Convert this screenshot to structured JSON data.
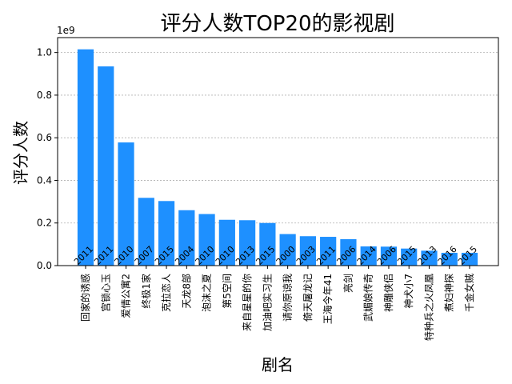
{
  "chart_data": {
    "type": "bar",
    "title": "评分人数TOP20的影视剧",
    "xlabel": "剧名",
    "ylabel": "评分人数",
    "y_offset_text": "1e9",
    "ylim": [
      0,
      1.07
    ],
    "yticks": [
      0.0,
      0.2,
      0.4,
      0.6,
      0.8,
      1.0
    ],
    "ytick_labels": [
      "0.0",
      "0.2",
      "0.4",
      "0.6",
      "0.8",
      "1.0"
    ],
    "grid": "y",
    "bar_color": "#1e90ff",
    "categories": [
      "回家的诱惑",
      "宫锁心玉",
      "爱情公寓2",
      "终极1家",
      "克拉恋人",
      "天龙8部",
      "泡沫之夏",
      "第5空间",
      "来自星星的你",
      "加油吧实习生",
      "请你原谅我",
      "倚天屠龙记",
      "王海今年41",
      "亮剑",
      "武媚娘传奇",
      "神雕侠侣",
      "神犬小7",
      "特种兵之火凤凰",
      "煮妇神探",
      "千金女贼"
    ],
    "values": [
      1.015,
      0.935,
      0.578,
      0.318,
      0.303,
      0.26,
      0.242,
      0.215,
      0.213,
      0.2,
      0.148,
      0.138,
      0.135,
      0.124,
      0.09,
      0.089,
      0.08,
      0.07,
      0.06,
      0.06
    ],
    "bar_labels": [
      "2011",
      "2011",
      "2010",
      "2007",
      "2015",
      "2004",
      "2010",
      "2010",
      "2013",
      "2015",
      "2000",
      "2003",
      "2011",
      "2006",
      "2014",
      "2006",
      "2015",
      "2013",
      "2016",
      "2015"
    ]
  }
}
